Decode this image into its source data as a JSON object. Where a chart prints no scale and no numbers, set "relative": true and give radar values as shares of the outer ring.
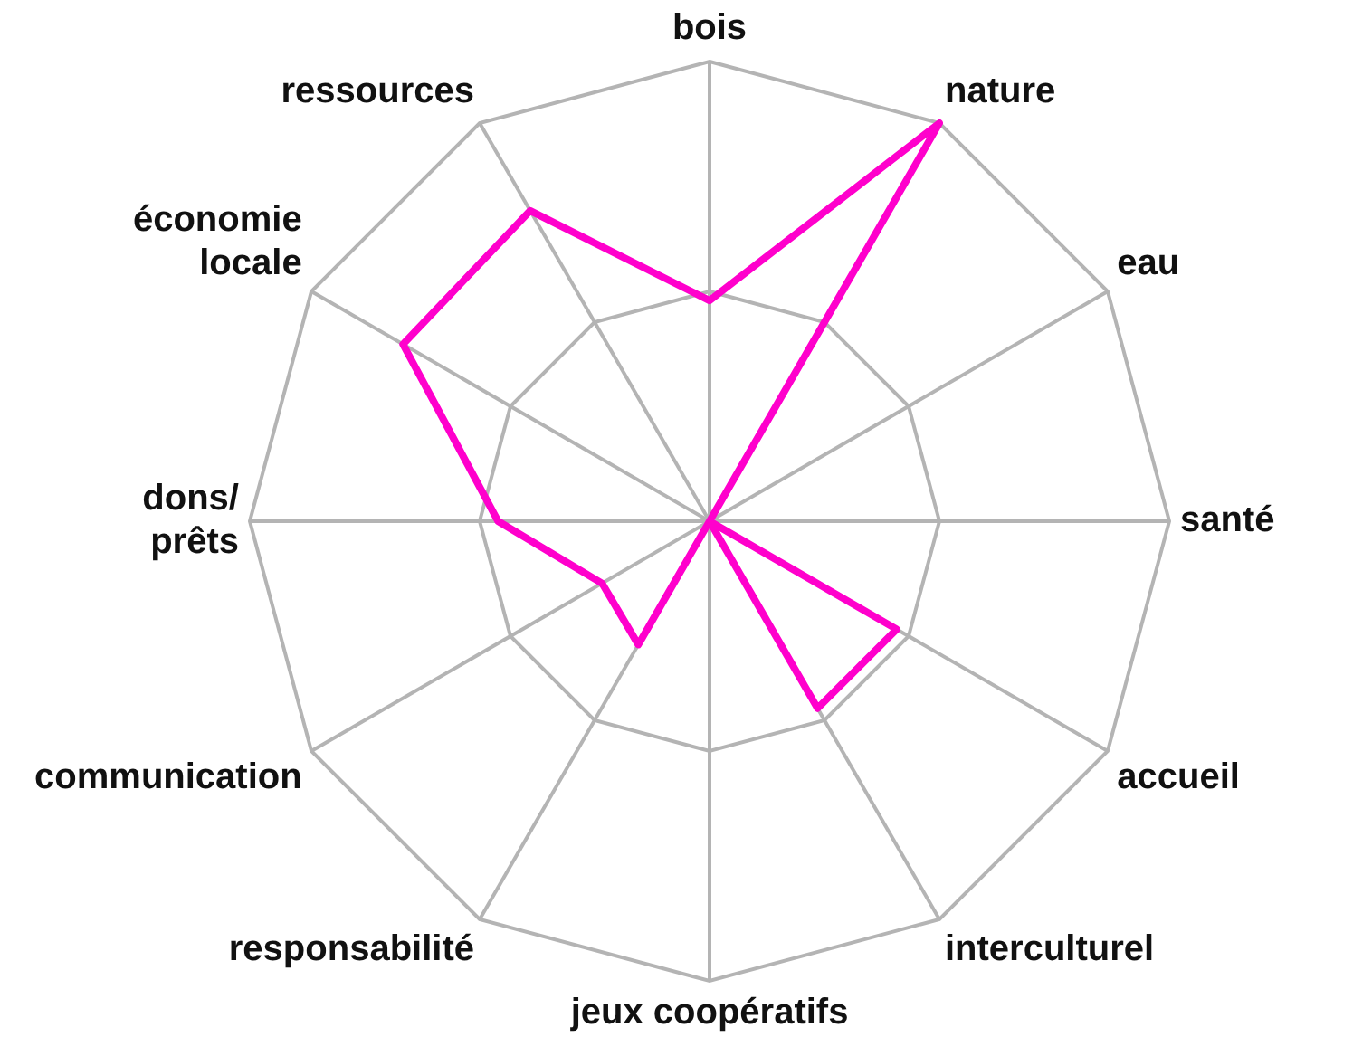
{
  "chart_data": {
    "type": "radar",
    "relative": true,
    "grid": true,
    "legend": false,
    "marker": "none",
    "categories": [
      "bois",
      "nature",
      "eau",
      "santé",
      "accueil",
      "interculturel",
      "jeux coopératifs",
      "responsabilité",
      "communication",
      "dons/\nprêts",
      "économie\nlocale",
      "ressources"
    ],
    "series": [
      {
        "color": "#ff00cc",
        "values": [
          0.48,
          1,
          0,
          0,
          0.47,
          0.47,
          0,
          0.31,
          0.27,
          0.46,
          0.77,
          0.78
        ]
      }
    ]
  }
}
